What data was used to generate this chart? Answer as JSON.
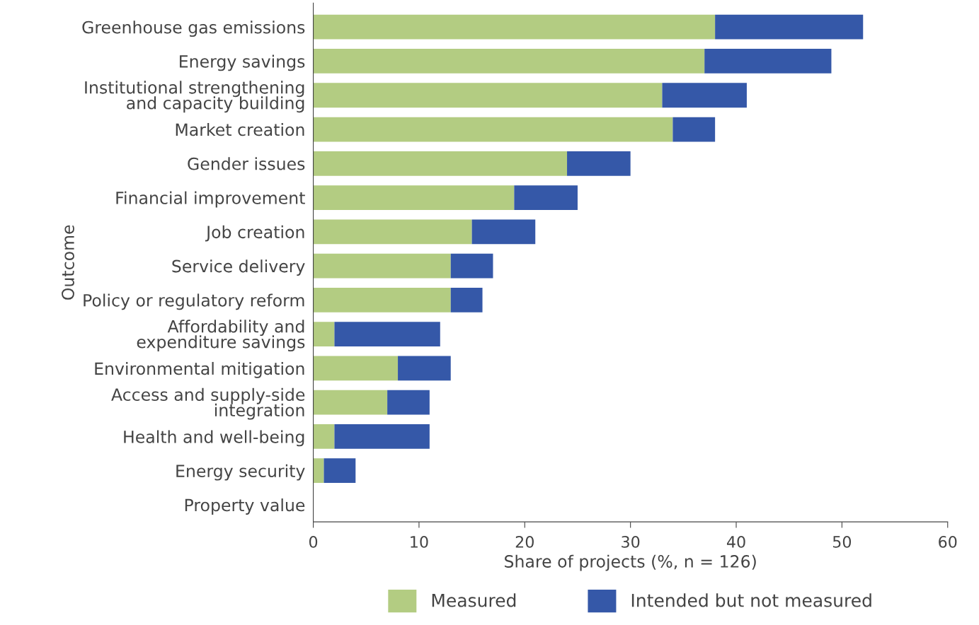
{
  "chart_data": {
    "type": "bar",
    "orientation": "horizontal",
    "stacked": true,
    "categories": [
      "Greenhouse gas emissions",
      "Energy savings",
      "Institutional strengthening\nand capacity building",
      "Market creation",
      "Gender issues",
      "Financial improvement",
      "Job creation",
      "Service delivery",
      "Policy or regulatory reform",
      "Affordability and\nexpenditure savings",
      "Environmental mitigation",
      "Access and supply-side\nintegration",
      "Health and well-being",
      "Energy security",
      "Property value"
    ],
    "series": [
      {
        "name": "Measured",
        "color": "#b3cc82",
        "values": [
          38,
          37,
          33,
          34,
          24,
          19,
          15,
          13,
          13,
          2,
          8,
          7,
          2,
          1,
          0
        ]
      },
      {
        "name": "Intended but not measured",
        "color": "#3558a8",
        "values": [
          14,
          12,
          8,
          4,
          6,
          6,
          6,
          4,
          3,
          10,
          5,
          4,
          9,
          3,
          0
        ]
      }
    ],
    "xlabel": "Share of projects (%, n = 126)",
    "ylabel": "Outcome",
    "xlim": [
      0,
      60
    ],
    "xticks": [
      0,
      10,
      20,
      30,
      40,
      50,
      60
    ],
    "grid": false,
    "legend": "bottom"
  }
}
